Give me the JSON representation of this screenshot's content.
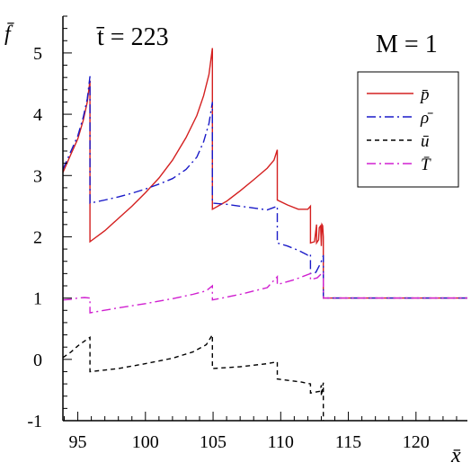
{
  "chart_data": {
    "type": "line",
    "title": "",
    "xlabel": "x̄",
    "ylabel": "f̄",
    "xlim": [
      93.9,
      123.8
    ],
    "ylim": [
      -1,
      5.6
    ],
    "x_ticks": [
      95,
      100,
      105,
      110,
      115,
      120
    ],
    "y_ticks": [
      -1,
      0,
      1,
      2,
      3,
      4,
      5
    ],
    "x_tick_labels": [
      "95",
      "100",
      "105",
      "110",
      "115",
      "120"
    ],
    "y_tick_labels": [
      "-1",
      "0",
      "1",
      "2",
      "3",
      "4",
      "5"
    ],
    "grid": false,
    "legend_position": "top-right",
    "annotations": {
      "time": "t̄ = 223",
      "mach": "M = 1"
    },
    "series": [
      {
        "name": "p̄",
        "color": "#d42020",
        "dash": "solid",
        "x": [
          93.9,
          94.5,
          95.0,
          95.4,
          95.7,
          95.9,
          95.9,
          97.0,
          98.0,
          99.0,
          100.0,
          101.0,
          102.0,
          103.0,
          103.8,
          104.3,
          104.7,
          104.95,
          104.95,
          106.0,
          107.0,
          108.0,
          109.0,
          109.5,
          109.75,
          109.75,
          110.5,
          111.3,
          112.0,
          112.2,
          112.2,
          112.5,
          112.65,
          112.65,
          112.8,
          112.85,
          112.95,
          113.0,
          113.05,
          113.1,
          113.15,
          113.15,
          113.6,
          123.8
        ],
        "y": [
          3.05,
          3.35,
          3.6,
          3.9,
          4.2,
          4.55,
          1.92,
          2.1,
          2.3,
          2.5,
          2.72,
          2.96,
          3.25,
          3.62,
          3.98,
          4.3,
          4.65,
          5.08,
          2.45,
          2.58,
          2.75,
          2.93,
          3.12,
          3.25,
          3.42,
          2.6,
          2.52,
          2.45,
          2.45,
          2.5,
          1.9,
          1.92,
          2.2,
          1.9,
          1.95,
          2.15,
          2.18,
          1.85,
          2.2,
          2.18,
          2.0,
          1.0,
          1.0,
          1.0
        ]
      },
      {
        "name": "ρ̄",
        "color": "#1a1ac8",
        "dash": "dashdot",
        "x": [
          93.9,
          94.5,
          95.0,
          95.4,
          95.7,
          95.9,
          95.9,
          97.0,
          98.0,
          99.0,
          100.0,
          101.0,
          102.0,
          103.0,
          103.8,
          104.3,
          104.7,
          104.95,
          104.95,
          106.0,
          107.0,
          108.0,
          109.0,
          109.75,
          109.75,
          110.5,
          111.3,
          112.0,
          112.2,
          112.2,
          112.6,
          112.9,
          113.1,
          113.15,
          113.15,
          113.6,
          123.8
        ],
        "y": [
          3.1,
          3.4,
          3.65,
          3.95,
          4.25,
          4.62,
          2.55,
          2.6,
          2.65,
          2.71,
          2.78,
          2.86,
          2.95,
          3.1,
          3.3,
          3.55,
          3.85,
          4.2,
          2.55,
          2.53,
          2.5,
          2.47,
          2.44,
          2.5,
          1.9,
          1.85,
          1.78,
          1.7,
          1.72,
          1.4,
          1.42,
          1.55,
          1.65,
          1.7,
          1.0,
          1.0,
          1.0
        ]
      },
      {
        "name": "ū",
        "color": "#000000",
        "dash": "dashed",
        "x": [
          93.9,
          94.5,
          95.0,
          95.5,
          95.9,
          95.9,
          98.0,
          100.0,
          102.0,
          103.5,
          104.5,
          104.95,
          104.95,
          107.0,
          109.0,
          109.75,
          109.75,
          111.5,
          112.2,
          112.2,
          112.9,
          113.0,
          113.0,
          113.15,
          113.15
        ],
        "y": [
          0.03,
          0.12,
          0.22,
          0.3,
          0.36,
          -0.2,
          -0.15,
          -0.07,
          0.02,
          0.12,
          0.24,
          0.4,
          -0.15,
          -0.12,
          -0.07,
          -0.04,
          -0.32,
          -0.37,
          -0.4,
          -0.55,
          -0.52,
          -0.42,
          -0.6,
          -0.38,
          -1.0
        ]
      },
      {
        "name": "T̄",
        "color": "#d020d0",
        "dash": "dashdot",
        "x": [
          93.9,
          94.5,
          95.0,
          95.5,
          95.9,
          95.9,
          98.0,
          100.0,
          102.0,
          103.5,
          104.5,
          104.95,
          104.95,
          107.0,
          109.0,
          109.75,
          109.75,
          111.0,
          112.2,
          112.2,
          112.7,
          113.1,
          113.15,
          113.15,
          123.8
        ],
        "y": [
          0.97,
          0.98,
          1.0,
          1.01,
          1.0,
          0.76,
          0.84,
          0.91,
          0.99,
          1.06,
          1.12,
          1.2,
          0.97,
          1.06,
          1.17,
          1.35,
          1.22,
          1.3,
          1.4,
          1.3,
          1.33,
          1.42,
          1.42,
          1.0,
          1.0
        ]
      }
    ]
  }
}
